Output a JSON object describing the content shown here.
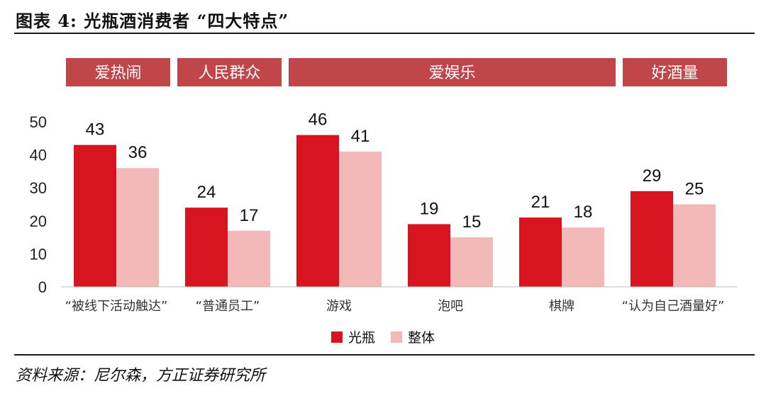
{
  "header": {
    "title": "图表 4: 光瓶酒消费者 “四大特点”"
  },
  "footer": {
    "source": "资料来源：尼尔森，方正证券研究所"
  },
  "colors": {
    "series_primary": "#d7141f",
    "series_secondary": "#f3b9b9",
    "banner": "#c0464a",
    "banner_text": "#ffffff"
  },
  "banners": [
    {
      "label": "爱热闹",
      "spans": [
        0
      ]
    },
    {
      "label": "人民群众",
      "spans": [
        1
      ]
    },
    {
      "label": "爱娱乐",
      "spans": [
        2,
        3,
        4
      ]
    },
    {
      "label": "好酒量",
      "spans": [
        5
      ]
    }
  ],
  "chart_data": {
    "type": "bar",
    "categories": [
      "“被线下活动触达”",
      "“普通员工”",
      "游戏",
      "泡吧",
      "棋牌",
      "“认为自己酒量好”"
    ],
    "series": [
      {
        "name": "光瓶",
        "values": [
          43,
          24,
          46,
          19,
          21,
          29
        ]
      },
      {
        "name": "整体",
        "values": [
          36,
          17,
          41,
          15,
          18,
          25
        ]
      }
    ],
    "ylim": [
      0,
      50
    ],
    "yticks": [
      0,
      10,
      20,
      30,
      40,
      50
    ],
    "data_labels": true,
    "grid": false,
    "legend_position": "bottom-center"
  }
}
